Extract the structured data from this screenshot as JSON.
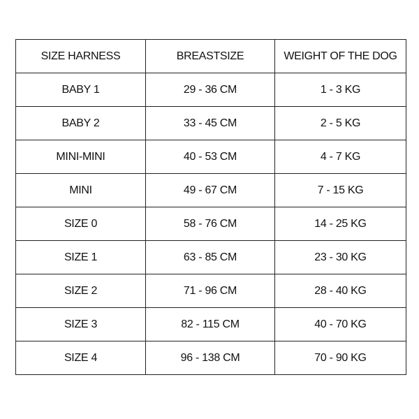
{
  "table": {
    "headers": [
      "SIZE HARNESS",
      "BREASTSIZE",
      "WEIGHT OF THE DOG"
    ],
    "rows": [
      [
        "BABY 1",
        "29 - 36 CM",
        "1 - 3 KG"
      ],
      [
        "BABY 2",
        "33 - 45 CM",
        "2 - 5 KG"
      ],
      [
        "MINI-MINI",
        "40 - 53 CM",
        "4 - 7 KG"
      ],
      [
        "MINI",
        "49 - 67 CM",
        "7 - 15 KG"
      ],
      [
        "SIZE 0",
        "58 - 76 CM",
        "14 - 25 KG"
      ],
      [
        "SIZE 1",
        "63 - 85 CM",
        "23 - 30 KG"
      ],
      [
        "SIZE 2",
        "71 - 96 CM",
        "28 - 40 KG"
      ],
      [
        "SIZE 3",
        "82 - 115 CM",
        "40 - 70 KG"
      ],
      [
        "SIZE 4",
        "96 - 138 CM",
        "70 - 90 KG"
      ]
    ]
  }
}
